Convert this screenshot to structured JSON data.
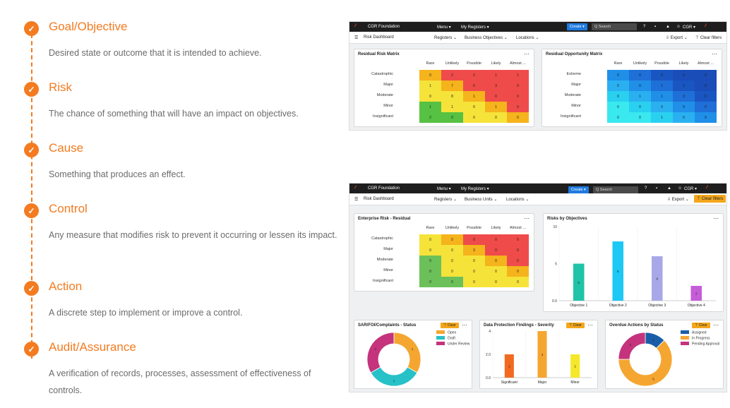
{
  "timeline": [
    {
      "title": "Goal/Objective",
      "desc": "Desired state or outcome that it is intended to achieve."
    },
    {
      "title": "Risk",
      "desc": "The chance of something that will have an impact on objectives."
    },
    {
      "title": "Cause",
      "desc": "Something that produces an effect."
    },
    {
      "title": "Control",
      "desc": "Any measure that modifies risk to prevent it occurring or lessen its impact."
    },
    {
      "title": "Action",
      "desc": "A discrete step to implement or improve a control."
    },
    {
      "title": "Audit/Assurance",
      "desc": "A verification of records, processes, assessment of effectiveness of controls."
    }
  ],
  "check_glyph": "✓",
  "nav": {
    "brand": "CGR Foundation",
    "menu": "Menu ▾",
    "my_registers": "My Registers ▾",
    "create": "Create ▾",
    "search": "Q Search",
    "user": "CGR ▾",
    "help": "?",
    "doc": "▪",
    "bell": "▲",
    "user_icon": "☺"
  },
  "dash1": {
    "title": "Risk Dashboard",
    "filters": [
      "Registers ⌄",
      "Business Objectives ⌄",
      "Locations ⌄"
    ],
    "export": "⇩ Export ⌄",
    "clear_filters": "⊤ Clear filters",
    "matrix1": {
      "title": "Residual Risk Matrix",
      "cols": [
        "Rare",
        "Unlikely",
        "Possible",
        "Likely",
        "Almost ..."
      ],
      "rows": [
        "Catastrophic",
        "Major",
        "Moderate",
        "Minor",
        "Insignificant"
      ],
      "values": [
        [
          "0",
          "2",
          "2",
          "1",
          "1"
        ],
        [
          "1",
          "7",
          "6",
          "3",
          "0"
        ],
        [
          "0",
          "8",
          "1",
          "0",
          "0"
        ],
        [
          "1",
          "1",
          "0",
          "1",
          "0"
        ],
        [
          "2",
          "0",
          "0",
          "0",
          "0"
        ]
      ],
      "colors": [
        [
          "#f5b31c",
          "#ef4b4b",
          "#ef4b4b",
          "#ef4b4b",
          "#ef4b4b"
        ],
        [
          "#f5e33a",
          "#f5b31c",
          "#ef4b4b",
          "#ef4b4b",
          "#ef4b4b"
        ],
        [
          "#f5e33a",
          "#f5e33a",
          "#f5b31c",
          "#ef4b4b",
          "#ef4b4b"
        ],
        [
          "#56c143",
          "#f5e33a",
          "#f5e33a",
          "#f5b31c",
          "#ef4b4b"
        ],
        [
          "#56c143",
          "#56c143",
          "#f5e33a",
          "#f5e33a",
          "#f5b31c"
        ]
      ]
    },
    "matrix2": {
      "title": "Residual Opportunity Matrix",
      "cols": [
        "Rare",
        "Unlikely",
        "Possible",
        "Likely",
        "Almost ..."
      ],
      "rows": [
        "Extreme",
        "Major",
        "Moderate",
        "Minor",
        "Insignificant"
      ],
      "values": [
        [
          "0",
          "0",
          "0",
          "0",
          "0"
        ],
        [
          "0",
          "0",
          "1",
          "1",
          "0"
        ],
        [
          "0",
          "1",
          "1",
          "0",
          "0"
        ],
        [
          "0",
          "0",
          "0",
          "0",
          "0"
        ],
        [
          "0",
          "0",
          "1",
          "0",
          "0"
        ]
      ],
      "colors": [
        [
          "#1f8fe8",
          "#1f6fd8",
          "#1a56c2",
          "#1a4db8",
          "#1a4db8"
        ],
        [
          "#2ab0f0",
          "#1f8fe8",
          "#1f6fd8",
          "#1a56c2",
          "#1a4db8"
        ],
        [
          "#2ad0f0",
          "#2ab0f0",
          "#1f8fe8",
          "#1f6fd8",
          "#1a56c2"
        ],
        [
          "#3ae8f0",
          "#2ad0f0",
          "#2ab0f0",
          "#1f8fe8",
          "#1f6fd8"
        ],
        [
          "#3ae8f0",
          "#3ae8f0",
          "#2ad0f0",
          "#2ab0f0",
          "#1f8fe8"
        ]
      ]
    }
  },
  "dash2": {
    "title": "Risk Dashboard",
    "filters": [
      "Registers ⌄",
      "Business Units ⌄",
      "Locations ⌄"
    ],
    "export": "⇩ Export ⌄",
    "clear_filters": "⊤ Clear filters",
    "matrix": {
      "title": "Enterprise Risk - Residual",
      "cols": [
        "Rare",
        "Unlikely",
        "Possible",
        "Likely",
        "Almost ..."
      ],
      "rows": [
        "Catastrophic",
        "Major",
        "Moderate",
        "Minor",
        "Insignificant"
      ],
      "values": [
        [
          "0",
          "0",
          "0",
          "0",
          "0"
        ],
        [
          "0",
          "0",
          "3",
          "0",
          "0"
        ],
        [
          "0",
          "0",
          "0",
          "0",
          "0"
        ],
        [
          "0",
          "0",
          "0",
          "0",
          "0"
        ],
        [
          "0",
          "0",
          "0",
          "0",
          "0"
        ]
      ],
      "colors": [
        [
          "#f5e33a",
          "#f5b31c",
          "#ef4b4b",
          "#ef4b4b",
          "#ef4b4b"
        ],
        [
          "#f5e33a",
          "#f5e33a",
          "#f5b31c",
          "#ef4b4b",
          "#ef4b4b"
        ],
        [
          "#6cc05a",
          "#f5e33a",
          "#f5e33a",
          "#f5b31c",
          "#ef4b4b"
        ],
        [
          "#6cc05a",
          "#f5e33a",
          "#f5e33a",
          "#f5e33a",
          "#f5b31c"
        ],
        [
          "#6cc05a",
          "#6cc05a",
          "#f5e33a",
          "#f5e33a",
          "#f5e33a"
        ]
      ]
    },
    "objectives": {
      "title": "Risks by Objectives"
    },
    "sar": {
      "title": "SAR/FOI/Complaints - Status",
      "clear": "⊤ Clear"
    },
    "dpf": {
      "title": "Data Protection Findings - Severity",
      "clear": "⊤ Clear"
    },
    "overdue": {
      "title": "Overdue Actions by Status",
      "clear": "⊤ Clear"
    }
  },
  "chart_data": [
    {
      "type": "bar",
      "title": "Risks by Objectives",
      "categories": [
        "Objective 1",
        "Objective 2",
        "Objective 3",
        "Objective 4"
      ],
      "values": [
        5,
        8,
        6,
        2
      ],
      "ylim": [
        0,
        10
      ],
      "yticks": [
        "10",
        "5",
        "0.0"
      ],
      "colors": [
        "#1fc4a8",
        "#1ec8f5",
        "#a8a8e8",
        "#c55cd8"
      ]
    },
    {
      "type": "pie",
      "title": "SAR/FOI/Complaints - Status",
      "labels": [
        "Open",
        "Draft",
        "Under Review"
      ],
      "values": [
        1,
        1,
        1
      ],
      "colors": [
        "#f5a631",
        "#27c1c8",
        "#c4337c"
      ]
    },
    {
      "type": "bar",
      "title": "Data Protection Findings - Severity",
      "categories": [
        "Significant",
        "Major",
        "Minor"
      ],
      "values": [
        2,
        4,
        2
      ],
      "ylim": [
        0,
        4
      ],
      "yticks": [
        "4",
        "2.0",
        "0.0"
      ],
      "colors": [
        "#f26a22",
        "#f5a631",
        "#f5e82a"
      ]
    },
    {
      "type": "pie",
      "title": "Overdue Actions by Status",
      "labels": [
        "Assigned",
        "In Progress",
        "Pending Approval"
      ],
      "values": [
        1,
        5,
        2
      ],
      "colors": [
        "#1a5ea8",
        "#f5a631",
        "#c4337c"
      ]
    }
  ]
}
